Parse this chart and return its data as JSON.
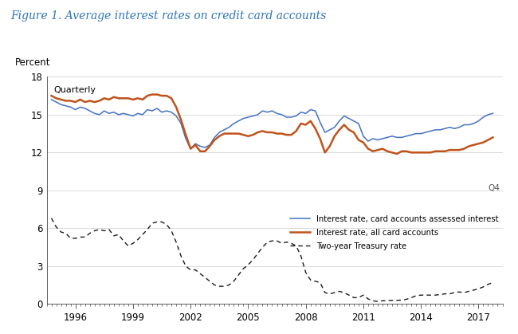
{
  "title": "Figure 1. Average interest rates on credit card accounts",
  "ylabel": "Percent",
  "sublabel": "Quarterly",
  "q4_label": "Q4",
  "ylim": [
    0,
    18
  ],
  "yticks": [
    0,
    3,
    6,
    9,
    12,
    15,
    18
  ],
  "xtick_years": [
    1996,
    1999,
    2002,
    2005,
    2008,
    2011,
    2014,
    2017
  ],
  "xlim": [
    1994.5,
    2018.25
  ],
  "title_color": "#2E75B6",
  "color_assessed": "#4472C4",
  "color_all": "#C0531A",
  "color_treasury": "#1a1a1a",
  "legend_labels": [
    "Interest rate, card accounts assessed interest",
    "Interest rate, all card accounts",
    "Two-year Treasury rate"
  ],
  "blue_x": [
    1994.75,
    1995.0,
    1995.25,
    1995.5,
    1995.75,
    1996.0,
    1996.25,
    1996.5,
    1996.75,
    1997.0,
    1997.25,
    1997.5,
    1997.75,
    1998.0,
    1998.25,
    1998.5,
    1998.75,
    1999.0,
    1999.25,
    1999.5,
    1999.75,
    2000.0,
    2000.25,
    2000.5,
    2000.75,
    2001.0,
    2001.25,
    2001.5,
    2001.75,
    2002.0,
    2002.25,
    2002.5,
    2002.75,
    2003.0,
    2003.25,
    2003.5,
    2003.75,
    2004.0,
    2004.25,
    2004.5,
    2004.75,
    2005.0,
    2005.25,
    2005.5,
    2005.75,
    2006.0,
    2006.25,
    2006.5,
    2006.75,
    2007.0,
    2007.25,
    2007.5,
    2007.75,
    2008.0,
    2008.25,
    2008.5,
    2008.75,
    2009.0,
    2009.25,
    2009.5,
    2009.75,
    2010.0,
    2010.25,
    2010.5,
    2010.75,
    2011.0,
    2011.25,
    2011.5,
    2011.75,
    2012.0,
    2012.25,
    2012.5,
    2012.75,
    2013.0,
    2013.25,
    2013.5,
    2013.75,
    2014.0,
    2014.25,
    2014.5,
    2014.75,
    2015.0,
    2015.25,
    2015.5,
    2015.75,
    2016.0,
    2016.25,
    2016.5,
    2016.75,
    2017.0,
    2017.25,
    2017.5,
    2017.75
  ],
  "blue_y": [
    16.2,
    16.0,
    15.8,
    15.7,
    15.6,
    15.4,
    15.6,
    15.5,
    15.3,
    15.1,
    15.0,
    15.3,
    15.1,
    15.2,
    15.0,
    15.1,
    15.0,
    14.9,
    15.1,
    15.0,
    15.4,
    15.3,
    15.5,
    15.2,
    15.3,
    15.2,
    14.9,
    14.3,
    13.1,
    12.3,
    12.7,
    12.5,
    12.4,
    12.6,
    13.2,
    13.6,
    13.8,
    14.0,
    14.3,
    14.5,
    14.7,
    14.8,
    14.9,
    15.0,
    15.3,
    15.2,
    15.3,
    15.1,
    15.0,
    14.8,
    14.8,
    14.9,
    15.2,
    15.1,
    15.4,
    15.3,
    14.4,
    13.6,
    13.8,
    14.0,
    14.5,
    14.9,
    14.7,
    14.5,
    14.3,
    13.3,
    12.9,
    13.1,
    13.0,
    13.1,
    13.2,
    13.3,
    13.2,
    13.2,
    13.3,
    13.4,
    13.5,
    13.5,
    13.6,
    13.7,
    13.8,
    13.8,
    13.9,
    14.0,
    13.9,
    14.0,
    14.2,
    14.2,
    14.3,
    14.5,
    14.8,
    15.0,
    15.1
  ],
  "orange_x": [
    1994.75,
    1995.0,
    1995.25,
    1995.5,
    1995.75,
    1996.0,
    1996.25,
    1996.5,
    1996.75,
    1997.0,
    1997.25,
    1997.5,
    1997.75,
    1998.0,
    1998.25,
    1998.5,
    1998.75,
    1999.0,
    1999.25,
    1999.5,
    1999.75,
    2000.0,
    2000.25,
    2000.5,
    2000.75,
    2001.0,
    2001.25,
    2001.5,
    2001.75,
    2002.0,
    2002.25,
    2002.5,
    2002.75,
    2003.0,
    2003.25,
    2003.5,
    2003.75,
    2004.0,
    2004.25,
    2004.5,
    2004.75,
    2005.0,
    2005.25,
    2005.5,
    2005.75,
    2006.0,
    2006.25,
    2006.5,
    2006.75,
    2007.0,
    2007.25,
    2007.5,
    2007.75,
    2008.0,
    2008.25,
    2008.5,
    2008.75,
    2009.0,
    2009.25,
    2009.5,
    2009.75,
    2010.0,
    2010.25,
    2010.5,
    2010.75,
    2011.0,
    2011.25,
    2011.5,
    2011.75,
    2012.0,
    2012.25,
    2012.5,
    2012.75,
    2013.0,
    2013.25,
    2013.5,
    2013.75,
    2014.0,
    2014.25,
    2014.5,
    2014.75,
    2015.0,
    2015.25,
    2015.5,
    2015.75,
    2016.0,
    2016.25,
    2016.5,
    2016.75,
    2017.0,
    2017.25,
    2017.5,
    2017.75
  ],
  "orange_y": [
    16.5,
    16.3,
    16.2,
    16.1,
    16.1,
    16.0,
    16.2,
    16.0,
    16.1,
    16.0,
    16.1,
    16.3,
    16.2,
    16.4,
    16.3,
    16.3,
    16.3,
    16.2,
    16.3,
    16.2,
    16.5,
    16.6,
    16.6,
    16.5,
    16.5,
    16.3,
    15.6,
    14.6,
    13.4,
    12.3,
    12.6,
    12.1,
    12.1,
    12.5,
    13.0,
    13.3,
    13.5,
    13.5,
    13.5,
    13.5,
    13.4,
    13.3,
    13.4,
    13.6,
    13.7,
    13.6,
    13.6,
    13.5,
    13.5,
    13.4,
    13.4,
    13.7,
    14.3,
    14.2,
    14.5,
    13.9,
    13.1,
    12.0,
    12.5,
    13.3,
    13.8,
    14.2,
    13.8,
    13.6,
    13.0,
    12.8,
    12.3,
    12.1,
    12.2,
    12.3,
    12.1,
    12.0,
    11.9,
    12.1,
    12.1,
    12.0,
    12.0,
    12.0,
    12.0,
    12.0,
    12.1,
    12.1,
    12.1,
    12.2,
    12.2,
    12.2,
    12.3,
    12.5,
    12.6,
    12.7,
    12.8,
    13.0,
    13.2
  ],
  "treasury_x": [
    1994.75,
    1995.0,
    1995.25,
    1995.5,
    1995.75,
    1996.0,
    1996.25,
    1996.5,
    1996.75,
    1997.0,
    1997.25,
    1997.5,
    1997.75,
    1998.0,
    1998.25,
    1998.5,
    1998.75,
    1999.0,
    1999.25,
    1999.5,
    1999.75,
    2000.0,
    2000.25,
    2000.5,
    2000.75,
    2001.0,
    2001.25,
    2001.5,
    2001.75,
    2002.0,
    2002.25,
    2002.5,
    2002.75,
    2003.0,
    2003.25,
    2003.5,
    2003.75,
    2004.0,
    2004.25,
    2004.5,
    2004.75,
    2005.0,
    2005.25,
    2005.5,
    2005.75,
    2006.0,
    2006.25,
    2006.5,
    2006.75,
    2007.0,
    2007.25,
    2007.5,
    2007.75,
    2008.0,
    2008.25,
    2008.5,
    2008.75,
    2009.0,
    2009.25,
    2009.5,
    2009.75,
    2010.0,
    2010.25,
    2010.5,
    2010.75,
    2011.0,
    2011.25,
    2011.5,
    2011.75,
    2012.0,
    2012.25,
    2012.5,
    2012.75,
    2013.0,
    2013.25,
    2013.5,
    2013.75,
    2014.0,
    2014.25,
    2014.5,
    2014.75,
    2015.0,
    2015.25,
    2015.5,
    2015.75,
    2016.0,
    2016.25,
    2016.5,
    2016.75,
    2017.0,
    2017.25,
    2017.5,
    2017.75
  ],
  "treasury_y": [
    6.8,
    6.1,
    5.7,
    5.6,
    5.2,
    5.2,
    5.3,
    5.3,
    5.6,
    5.8,
    5.9,
    5.8,
    5.9,
    5.4,
    5.5,
    5.0,
    4.6,
    4.8,
    5.1,
    5.5,
    5.9,
    6.4,
    6.5,
    6.5,
    6.3,
    5.8,
    4.9,
    3.8,
    3.0,
    2.7,
    2.7,
    2.4,
    2.1,
    1.8,
    1.5,
    1.4,
    1.4,
    1.5,
    1.8,
    2.3,
    2.8,
    3.1,
    3.5,
    4.0,
    4.5,
    4.9,
    5.0,
    5.0,
    4.8,
    4.9,
    4.8,
    4.6,
    3.8,
    2.5,
    1.9,
    1.8,
    1.7,
    0.9,
    0.8,
    0.9,
    1.0,
    0.9,
    0.7,
    0.5,
    0.5,
    0.7,
    0.4,
    0.25,
    0.2,
    0.25,
    0.27,
    0.28,
    0.29,
    0.3,
    0.37,
    0.5,
    0.65,
    0.7,
    0.7,
    0.7,
    0.7,
    0.75,
    0.8,
    0.8,
    0.9,
    0.95,
    0.9,
    1.0,
    1.1,
    1.2,
    1.35,
    1.55,
    1.7
  ]
}
